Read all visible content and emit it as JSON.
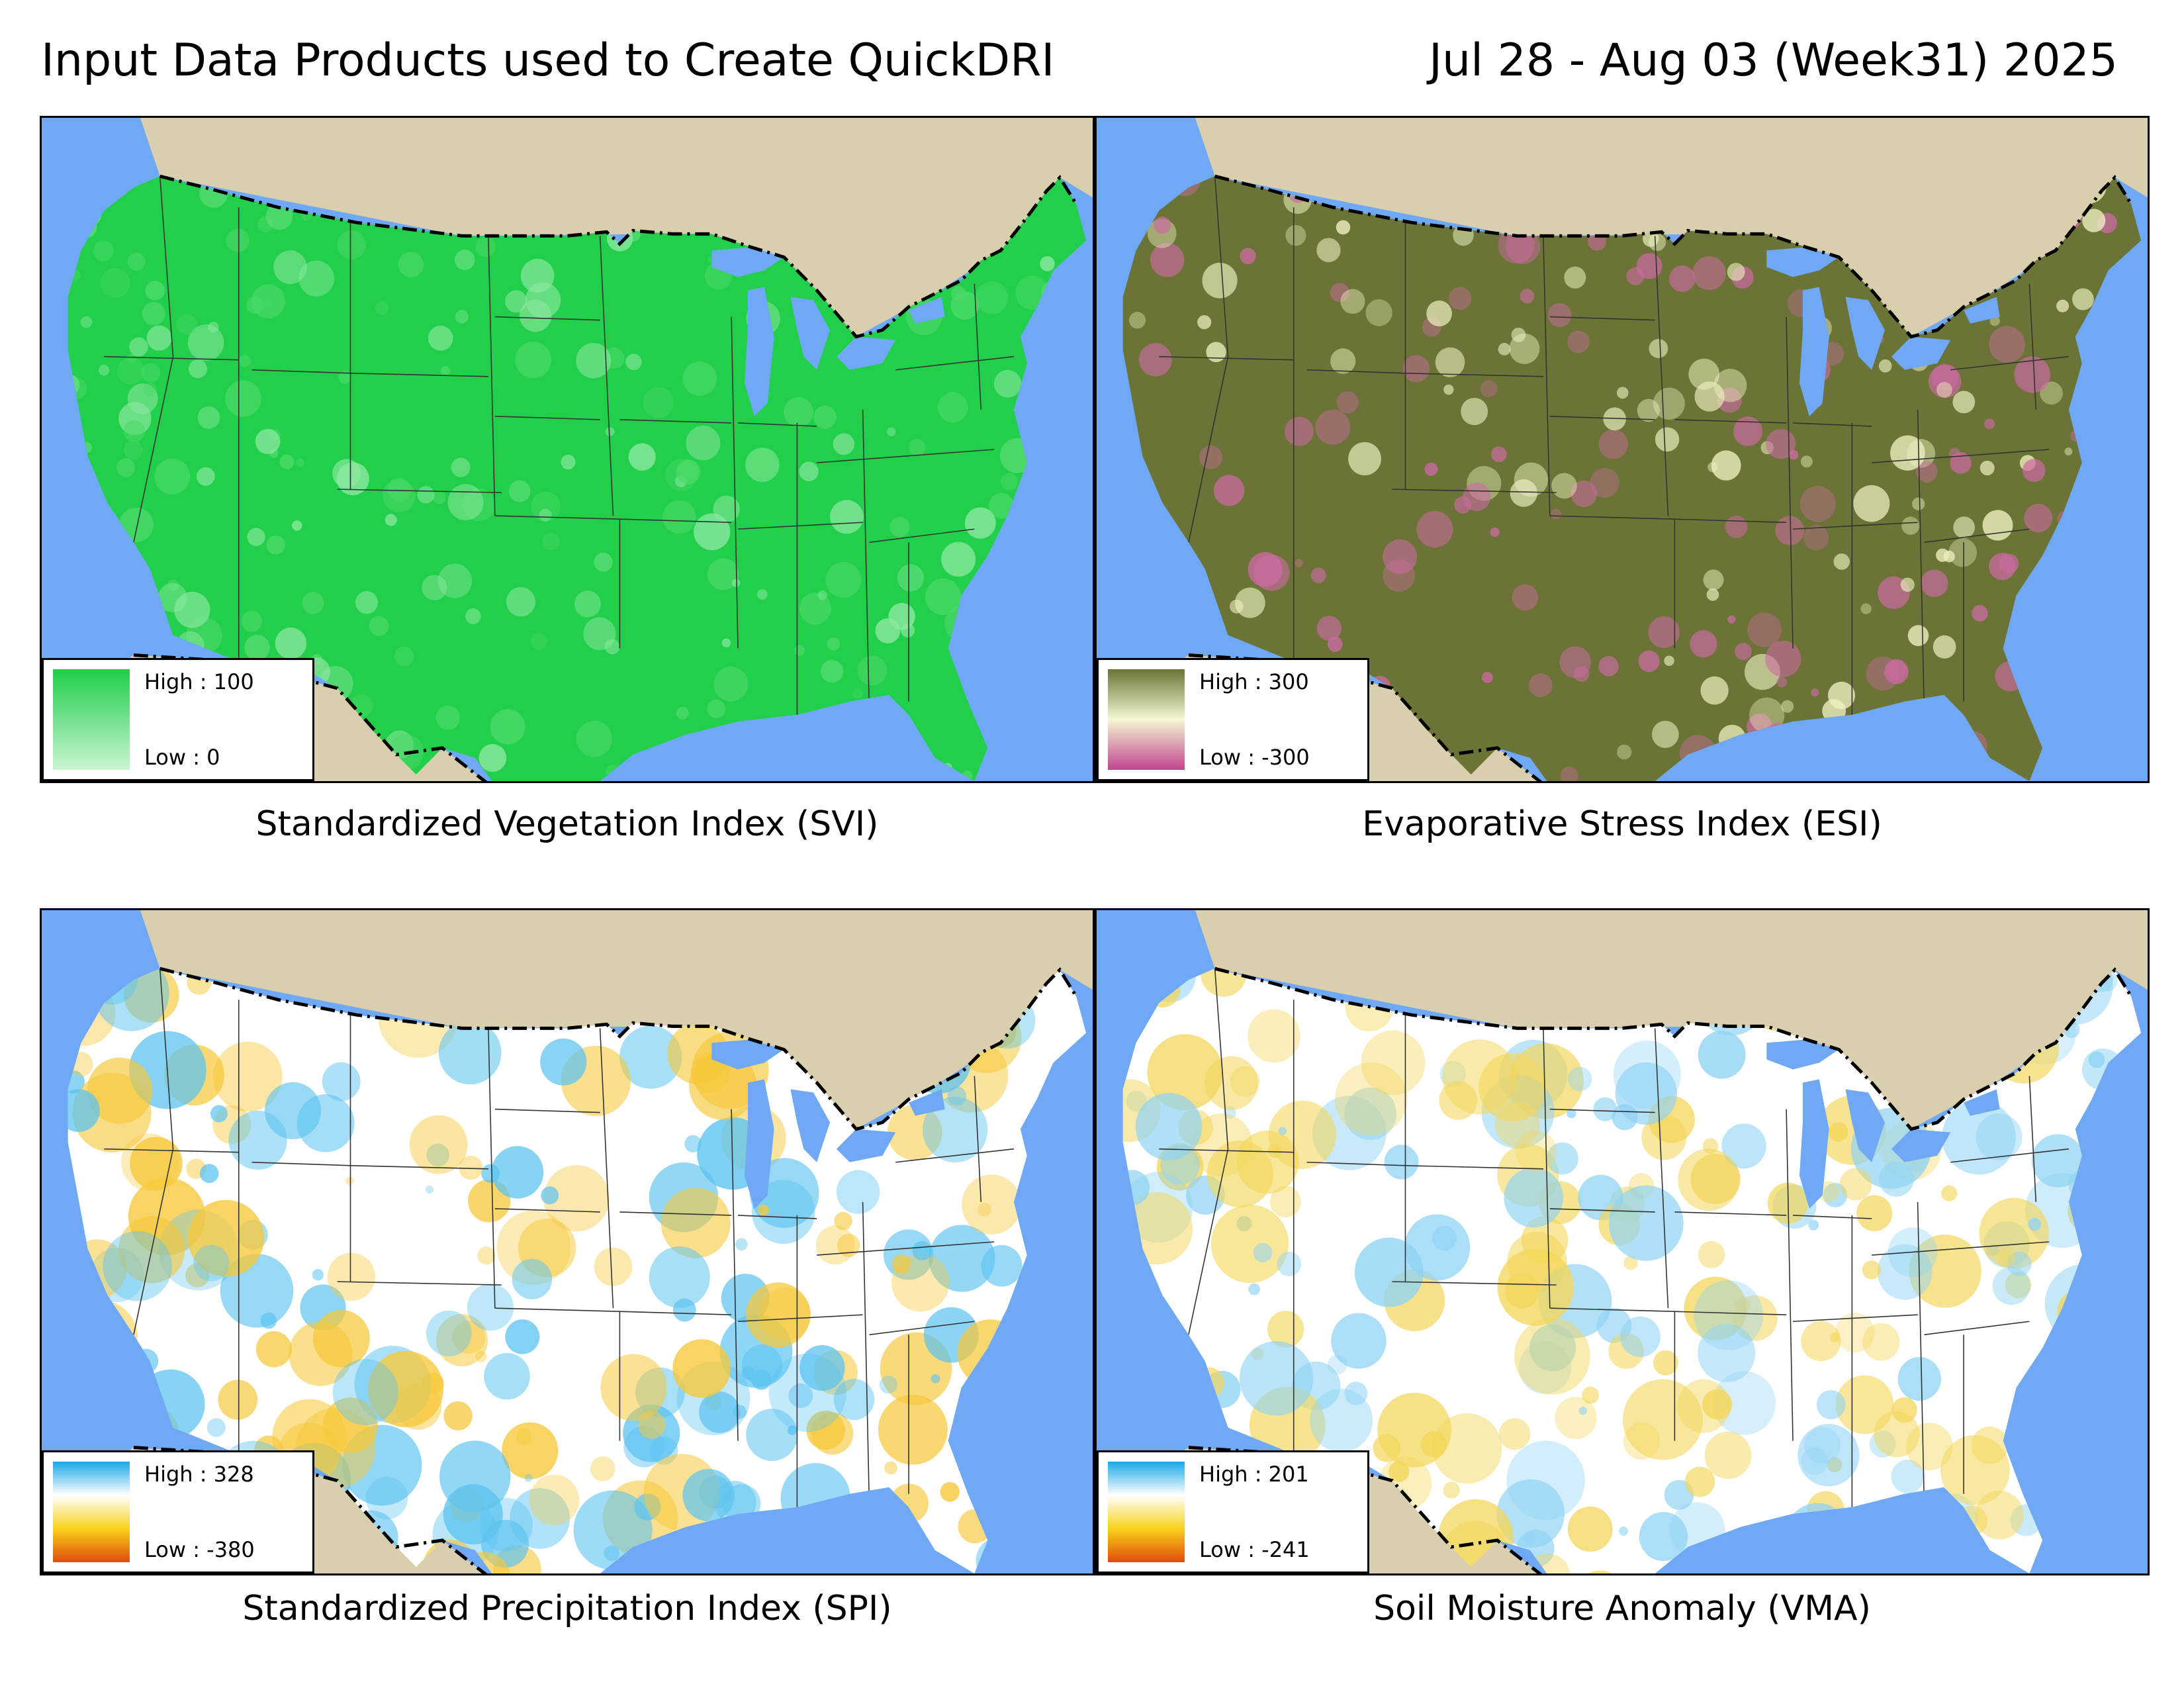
{
  "header": {
    "title": "Input Data Products used to Create QuickDRI",
    "date": "Jul 28 - Aug 03 (Week31) 2025"
  },
  "colors": {
    "water": "#6fa8f5",
    "land_outside": "#d9cfae",
    "boundary": "#000000"
  },
  "panels": [
    {
      "id": "svi",
      "caption": "Standardized Vegetation Index (SVI)",
      "legend": {
        "high_label": "High : 100",
        "low_label": "Low : 0",
        "ramp": [
          "#1fce4a",
          "#c9f5d2"
        ]
      },
      "fill_colors": [
        "#22cf4a",
        "#4dd96a",
        "#8ee8a2"
      ]
    },
    {
      "id": "esi",
      "caption": "Evaporative Stress Index (ESI)",
      "legend": {
        "high_label": "High : 300",
        "low_label": "Low : -300",
        "ramp": [
          "#6b7436",
          "#f6f7d4",
          "#c0458e"
        ]
      },
      "fill_colors": [
        "#6b7436",
        "#eff0c0",
        "#cc6aa3"
      ]
    },
    {
      "id": "spi",
      "caption": "Standardized Precipitation Index (SPI)",
      "legend": {
        "high_label": "High : 328",
        "low_label": "Low : -380",
        "ramp": [
          "#19a8e6",
          "#ffffff",
          "#f7d21a",
          "#e14b0d"
        ]
      },
      "fill_colors": [
        "#ffffff",
        "#5cc3f0",
        "#f6c83a"
      ]
    },
    {
      "id": "vma",
      "caption": "Soil Moisture Anomaly (VMA)",
      "legend": {
        "high_label": "High : 201",
        "low_label": "Low : -241",
        "ramp": [
          "#19a8e6",
          "#ffffff",
          "#f7d21a",
          "#e14b0d"
        ]
      },
      "fill_colors": [
        "#ffffff",
        "#8fd3f4",
        "#f3d65a"
      ]
    }
  ]
}
